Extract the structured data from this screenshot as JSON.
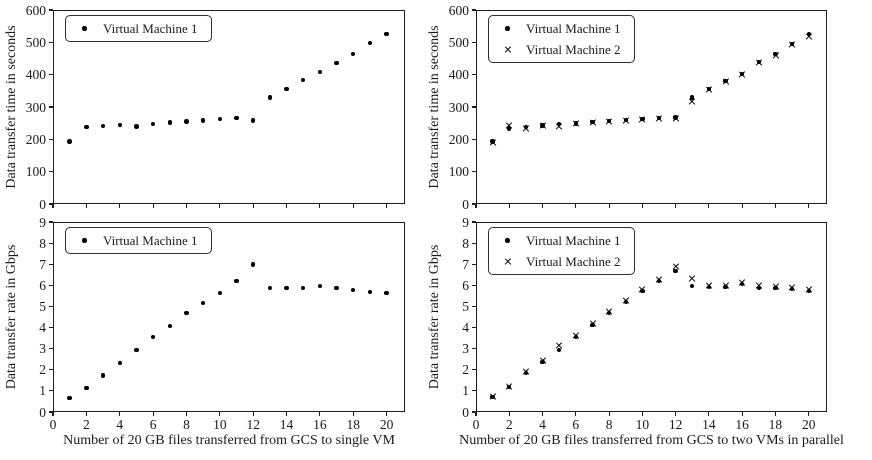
{
  "figure": {
    "background": "#ffffff",
    "axis_color": "#1c1c1c",
    "text_color": "#1a1a1a",
    "marker_color": "#000000"
  },
  "chart_data": [
    {
      "id": "transfer-time-single-vm",
      "type": "scatter",
      "title": "",
      "xlabel": "",
      "ylabel": "Data transfer time in seconds",
      "xlim": [
        0,
        21.1
      ],
      "ylim": [
        0,
        600
      ],
      "xticks": [
        0,
        2,
        4,
        6,
        8,
        10,
        12,
        14,
        16,
        18,
        20
      ],
      "yticks": [
        0,
        100,
        200,
        300,
        400,
        500,
        600
      ],
      "show_xtick_labels": false,
      "grid": false,
      "legend_position": "upper-left",
      "x": [
        1,
        2,
        3,
        4,
        5,
        6,
        7,
        8,
        9,
        10,
        11,
        12,
        13,
        14,
        15,
        16,
        17,
        18,
        19,
        20
      ],
      "series": [
        {
          "name": "Virtual Machine 1",
          "marker": "dot",
          "values": [
            193,
            239,
            242,
            245,
            240,
            248,
            252,
            255,
            258,
            263,
            266,
            258,
            329,
            356,
            383,
            408,
            437,
            464,
            498,
            525
          ]
        }
      ]
    },
    {
      "id": "transfer-time-two-vms",
      "type": "scatter",
      "title": "",
      "xlabel": "",
      "ylabel": "Data transfer time in seconds",
      "xlim": [
        0,
        21.1
      ],
      "ylim": [
        0,
        600
      ],
      "xticks": [
        0,
        2,
        4,
        6,
        8,
        10,
        12,
        14,
        16,
        18,
        20
      ],
      "yticks": [
        0,
        100,
        200,
        300,
        400,
        500,
        600
      ],
      "show_xtick_labels": false,
      "grid": false,
      "legend_position": "upper-left",
      "x": [
        1,
        2,
        3,
        4,
        5,
        6,
        7,
        8,
        9,
        10,
        11,
        12,
        13,
        14,
        15,
        16,
        17,
        18,
        19,
        20
      ],
      "series": [
        {
          "name": "Virtual Machine 1",
          "marker": "dot",
          "values": [
            193,
            234,
            238,
            243,
            247,
            249,
            253,
            256,
            259,
            263,
            266,
            268,
            329,
            355,
            380,
            402,
            439,
            463,
            495,
            525
          ]
        },
        {
          "name": "Virtual Machine 2",
          "marker": "x",
          "values": [
            191,
            242,
            233,
            241,
            240,
            247,
            252,
            255,
            258,
            262,
            265,
            264,
            316,
            353,
            378,
            400,
            436,
            460,
            492,
            519
          ]
        }
      ]
    },
    {
      "id": "transfer-rate-single-vm",
      "type": "scatter",
      "title": "",
      "xlabel": "Number of 20 GB files transferred from GCS to single VM",
      "ylabel": "Data transfer rate in Gbps",
      "xlim": [
        0,
        21.1
      ],
      "ylim": [
        0,
        9
      ],
      "xticks": [
        0,
        2,
        4,
        6,
        8,
        10,
        12,
        14,
        16,
        18,
        20
      ],
      "yticks": [
        0,
        1,
        2,
        3,
        4,
        5,
        6,
        7,
        8,
        9
      ],
      "show_xtick_labels": true,
      "grid": false,
      "legend_position": "upper-left",
      "x": [
        1,
        2,
        3,
        4,
        5,
        6,
        7,
        8,
        9,
        10,
        11,
        12,
        13,
        14,
        15,
        16,
        17,
        18,
        19,
        20
      ],
      "series": [
        {
          "name": "Virtual Machine 1",
          "marker": "dot",
          "values": [
            0.67,
            1.15,
            1.72,
            2.33,
            2.95,
            3.55,
            4.08,
            4.69,
            5.17,
            5.64,
            6.21,
            6.98,
            5.88,
            5.88,
            5.88,
            5.97,
            5.88,
            5.78,
            5.69,
            5.64
          ]
        }
      ]
    },
    {
      "id": "transfer-rate-two-vms",
      "type": "scatter",
      "title": "",
      "xlabel": "Number of 20 GB files transferred from GCS to two VMs in parallel",
      "ylabel": "Data transfer rate in Gbps",
      "xlim": [
        0,
        21.1
      ],
      "ylim": [
        0,
        9
      ],
      "xticks": [
        0,
        2,
        4,
        6,
        8,
        10,
        12,
        14,
        16,
        18,
        20
      ],
      "yticks": [
        0,
        1,
        2,
        3,
        4,
        5,
        6,
        7,
        8,
        9
      ],
      "show_xtick_labels": true,
      "grid": false,
      "legend_position": "upper-left",
      "x": [
        1,
        2,
        3,
        4,
        5,
        6,
        7,
        8,
        9,
        10,
        11,
        12,
        13,
        14,
        15,
        16,
        17,
        18,
        19,
        20
      ],
      "series": [
        {
          "name": "Virtual Machine 1",
          "marker": "dot",
          "values": [
            0.7,
            1.18,
            1.86,
            2.37,
            2.94,
            3.55,
            4.12,
            4.69,
            5.21,
            5.72,
            6.21,
            6.68,
            5.97,
            5.92,
            5.92,
            6.05,
            5.88,
            5.88,
            5.83,
            5.73
          ]
        },
        {
          "name": "Virtual Machine 2",
          "marker": "x",
          "values": [
            0.73,
            1.22,
            1.92,
            2.43,
            3.13,
            3.63,
            4.18,
            4.75,
            5.28,
            5.79,
            6.27,
            6.87,
            6.33,
            6.0,
            6.0,
            6.11,
            6.0,
            5.96,
            5.89,
            5.8
          ]
        }
      ]
    }
  ]
}
